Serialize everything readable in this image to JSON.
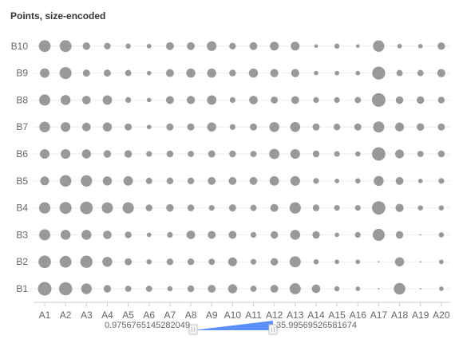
{
  "chart_data": {
    "type": "scatter",
    "encoding": "size",
    "title": "Points, size-encoded",
    "x_categories": [
      "A1",
      "A2",
      "A3",
      "A4",
      "A5",
      "A6",
      "A7",
      "A8",
      "A9",
      "A10",
      "A11",
      "A12",
      "A13",
      "A14",
      "A15",
      "A16",
      "A17",
      "A18",
      "A19",
      "A20"
    ],
    "y_categories": [
      "B1",
      "B2",
      "B3",
      "B4",
      "B5",
      "B6",
      "B7",
      "B8",
      "B9",
      "B10"
    ],
    "point_color": "#999999",
    "grid": true,
    "size_values": [
      [
        34,
        32,
        20,
        9,
        6,
        6,
        4,
        7,
        10,
        14,
        6,
        10,
        22,
        12,
        4,
        3,
        1,
        24,
        1,
        3
      ],
      [
        28,
        25,
        27,
        17,
        8,
        4,
        7,
        7,
        6,
        13,
        5,
        9,
        22,
        4,
        3,
        3,
        1,
        14,
        1,
        3
      ],
      [
        22,
        17,
        17,
        12,
        7,
        3,
        5,
        12,
        10,
        10,
        5,
        9,
        17,
        9,
        3,
        5,
        26,
        9,
        1,
        4
      ],
      [
        23,
        26,
        29,
        22,
        23,
        7,
        9,
        7,
        5,
        8,
        6,
        10,
        23,
        7,
        5,
        5,
        33,
        11,
        4,
        4
      ],
      [
        13,
        24,
        23,
        14,
        15,
        6,
        7,
        7,
        10,
        10,
        10,
        15,
        16,
        5,
        3,
        4,
        17,
        10,
        3,
        5
      ],
      [
        16,
        16,
        14,
        9,
        9,
        5,
        7,
        6,
        8,
        7,
        6,
        18,
        16,
        7,
        5,
        4,
        33,
        13,
        6,
        7
      ],
      [
        20,
        16,
        12,
        14,
        8,
        3,
        8,
        8,
        14,
        5,
        8,
        17,
        17,
        8,
        7,
        8,
        22,
        13,
        9,
        8
      ],
      [
        22,
        17,
        12,
        15,
        5,
        3,
        10,
        11,
        15,
        5,
        12,
        8,
        10,
        5,
        5,
        6,
        34,
        9,
        9,
        7
      ],
      [
        15,
        26,
        8,
        8,
        6,
        3,
        10,
        14,
        14,
        7,
        14,
        11,
        11,
        3,
        3,
        3,
        31,
        6,
        6,
        11
      ],
      [
        25,
        25,
        9,
        7,
        4,
        3,
        10,
        10,
        16,
        7,
        10,
        13,
        13,
        2,
        4,
        2,
        23,
        3,
        3,
        9
      ]
    ],
    "range_slider": {
      "min_label": "0.9756765145282049",
      "max_label": "35.99569526581674",
      "fill_color": "#5b8ff9"
    }
  }
}
